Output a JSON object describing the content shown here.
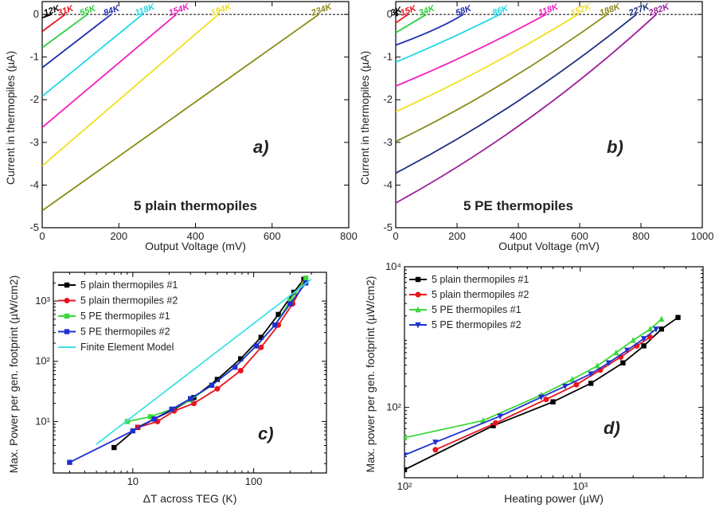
{
  "chart_data": [
    {
      "panel": "a)",
      "type": "line",
      "annotation": "5 plain thermopiles",
      "xlabel": "Output Voltage (mV)",
      "ylabel": "Current in thermopiles (µA)",
      "xlim": [
        0,
        800
      ],
      "ylim": [
        -5,
        0.3
      ],
      "xticks": [
        0,
        200,
        400,
        600,
        800
      ],
      "yticks": [
        -5,
        -4,
        -3,
        -2,
        -1,
        0
      ],
      "zero_line": "dashed",
      "series": [
        {
          "name": "12K",
          "color": "#000000",
          "x": [
            0,
            24
          ],
          "y": [
            -0.08,
            0
          ]
        },
        {
          "name": "31K",
          "color": "#e8141c",
          "x": [
            0,
            60
          ],
          "y": [
            -0.4,
            0
          ]
        },
        {
          "name": "55K",
          "color": "#2ecc40",
          "x": [
            0,
            118
          ],
          "y": [
            -0.78,
            0
          ]
        },
        {
          "name": "84K",
          "color": "#1f2fb0",
          "x": [
            0,
            180
          ],
          "y": [
            -1.25,
            0
          ]
        },
        {
          "name": "118K",
          "color": "#1fd8e8",
          "x": [
            0,
            262
          ],
          "y": [
            -1.92,
            0
          ]
        },
        {
          "name": "154K",
          "color": "#f31fc0",
          "x": [
            0,
            350
          ],
          "y": [
            -2.65,
            0
          ]
        },
        {
          "name": "194K",
          "color": "#f0e020",
          "x": [
            0,
            460
          ],
          "y": [
            -3.55,
            0
          ]
        },
        {
          "name": "234K",
          "color": "#8a8a16",
          "x": [
            0,
            722
          ],
          "y": [
            -4.6,
            0
          ]
        }
      ]
    },
    {
      "panel": "b)",
      "type": "line",
      "annotation": "5 PE thermopiles",
      "xlabel": "Output Voltage (mV)",
      "ylabel": "Current in thermopiles (µA)",
      "xlim": [
        0,
        1000
      ],
      "ylim": [
        -5,
        0.3
      ],
      "xticks": [
        0,
        200,
        400,
        600,
        800,
        1000
      ],
      "yticks": [
        -5,
        -4,
        -3,
        -2,
        -1,
        0
      ],
      "zero_line": "dashed",
      "series": [
        {
          "name": "3K",
          "color": "#000000",
          "x": [
            0,
            8
          ],
          "y": [
            -0.04,
            0
          ]
        },
        {
          "name": "15K",
          "color": "#e8141c",
          "x": [
            0,
            40
          ],
          "y": [
            -0.2,
            0
          ]
        },
        {
          "name": "34K",
          "color": "#2ecc40",
          "x": [
            0,
            100
          ],
          "y": [
            -0.43,
            0
          ]
        },
        {
          "name": "58K",
          "color": "#1f2fb0",
          "x": [
            0,
            150,
            220
          ],
          "y": [
            -0.72,
            -0.3,
            0
          ]
        },
        {
          "name": "86K",
          "color": "#1fd8e8",
          "x": [
            0,
            180,
            340
          ],
          "y": [
            -1.12,
            -0.55,
            0
          ]
        },
        {
          "name": "118K",
          "color": "#f31fc0",
          "x": [
            0,
            250,
            490
          ],
          "y": [
            -1.68,
            -0.9,
            0
          ]
        },
        {
          "name": "152K",
          "color": "#f0e020",
          "x": [
            0,
            300,
            595
          ],
          "y": [
            -2.28,
            -1.25,
            0
          ]
        },
        {
          "name": "188K",
          "color": "#8a8a16",
          "x": [
            0,
            350,
            690
          ],
          "y": [
            -2.98,
            -1.7,
            0
          ]
        },
        {
          "name": "227K",
          "color": "#1f2f80",
          "x": [
            0,
            400,
            785
          ],
          "y": [
            -3.72,
            -2.15,
            0
          ]
        },
        {
          "name": "282K",
          "color": "#9a1f9a",
          "x": [
            0,
            450,
            850
          ],
          "y": [
            -4.42,
            -2.55,
            0
          ]
        }
      ]
    },
    {
      "panel": "c)",
      "type": "line",
      "xlabel": "ΔT across TEG (K)",
      "ylabel": "Max. Power per gen. footprint (µW/cm2)",
      "xscale": "log",
      "yscale": "log",
      "xlim": [
        2.2,
        400
      ],
      "ylim": [
        1.4,
        3000
      ],
      "xticks": [
        10,
        100
      ],
      "xtick_labels": [
        "10",
        "100"
      ],
      "yticks": [
        10,
        100,
        1000
      ],
      "ytick_labels": [
        "10¹",
        "10²",
        "10³"
      ],
      "legend": "top-left",
      "series": [
        {
          "name": "5 plain thermopiles #1",
          "color": "#000000",
          "marker": "square",
          "x": [
            7,
            11,
            15,
            22,
            32,
            50,
            78,
            115,
            160,
            215,
            260
          ],
          "y": [
            3.7,
            8,
            11,
            16,
            25,
            50,
            110,
            250,
            600,
            1400,
            2300
          ]
        },
        {
          "name": "5 plain thermopiles #2",
          "color": "#e8141c",
          "marker": "circle",
          "x": [
            11,
            16,
            22,
            32,
            50,
            78,
            115,
            160,
            210,
            260
          ],
          "y": [
            8,
            10,
            15,
            20,
            35,
            70,
            170,
            400,
            900,
            2000
          ]
        },
        {
          "name": "5 PE thermopiles #1",
          "color": "#3ad83a",
          "marker": "square",
          "x": [
            9,
            14,
            21,
            30,
            45,
            70,
            105,
            150,
            200,
            270
          ],
          "y": [
            10,
            12,
            16,
            23,
            40,
            80,
            180,
            400,
            1000,
            2400
          ]
        },
        {
          "name": "5 PE thermopiles #2",
          "color": "#1f2fd0",
          "marker": "square",
          "x": [
            3,
            10,
            15,
            21,
            30,
            45,
            70,
            105,
            150,
            200,
            270
          ],
          "y": [
            2.1,
            7,
            11,
            16,
            24,
            40,
            80,
            180,
            400,
            900,
            2000
          ]
        },
        {
          "name": "Finite Element Model",
          "color": "#3ee0e8",
          "marker": "none",
          "x": [
            5,
            300
          ],
          "y": [
            4.2,
            2300
          ]
        }
      ]
    },
    {
      "panel": "d)",
      "type": "line",
      "xlabel": "Heating power (µW)",
      "ylabel": "Max. power per gen. footprint (µW/cm2)",
      "xscale": "log",
      "yscale": "log",
      "xlim": [
        100,
        5000
      ],
      "ylim": [
        10,
        10000
      ],
      "xticks": [
        100,
        1000
      ],
      "xtick_labels": [
        "10²",
        "10³"
      ],
      "yticks": [
        100,
        10000
      ],
      "ytick_labels": [
        "10²",
        "10⁴"
      ],
      "legend": "top-left",
      "series": [
        {
          "name": "5 plain thermopiles #1",
          "color": "#000000",
          "marker": "square",
          "x": [
            100,
            320,
            700,
            1150,
            1750,
            2300,
            2900,
            3600
          ],
          "y": [
            13,
            55,
            120,
            220,
            430,
            750,
            1300,
            1900
          ]
        },
        {
          "name": "5 plain thermopiles #2",
          "color": "#e8141c",
          "marker": "circle",
          "x": [
            150,
            330,
            640,
            950,
            1300,
            1700,
            2100,
            2500
          ],
          "y": [
            25,
            60,
            130,
            210,
            340,
            520,
            750,
            1000
          ]
        },
        {
          "name": "5 PE thermopiles #1",
          "color": "#3ad83a",
          "marker": "triangle-up",
          "x": [
            100,
            280,
            600,
            900,
            1250,
            1600,
            2000,
            2500,
            2900
          ],
          "y": [
            37,
            65,
            150,
            250,
            390,
            600,
            900,
            1300,
            1800
          ]
        },
        {
          "name": "5 PE thermopiles #2",
          "color": "#1f2fd0",
          "marker": "triangle-down",
          "x": [
            100,
            150,
            350,
            600,
            820,
            1150,
            1450,
            1850,
            2300,
            2700
          ],
          "y": [
            21,
            32,
            75,
            140,
            200,
            300,
            430,
            650,
            950,
            1300
          ]
        }
      ]
    }
  ]
}
